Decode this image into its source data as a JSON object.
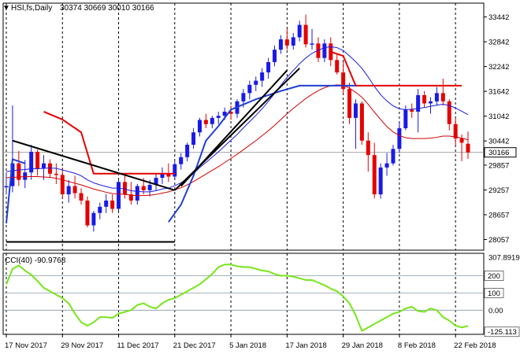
{
  "header": {
    "symbol_label": "HSI,fs,Daily",
    "quote_values": "30374 30669 30010 30166",
    "dropdown_glyph": "▼"
  },
  "subwindow": {
    "indicator_label": "CCI(40) -90.9768"
  },
  "colors": {
    "bull": "#1a1ae6",
    "bear": "#e60000",
    "ema_fast": "#1a1ae6",
    "ema_slow": "#d40000",
    "stop_blue": "#1f3fd6",
    "stop_red": "#e60000",
    "cci": "#77e61a",
    "trend": "#000000",
    "price_tag": "#ffffff"
  },
  "chart_data": [
    {
      "type": "candlestick",
      "ylim": [
        27800,
        33700
      ],
      "yticks": [
        "33442",
        "32842",
        "32242",
        "31642",
        "31042",
        "30442",
        "30166",
        "29857",
        "29257",
        "28657",
        "28057"
      ],
      "ytick_values": [
        33442,
        32842,
        32242,
        31642,
        31042,
        30442,
        30166,
        29857,
        29257,
        28657,
        28057
      ],
      "last_price": 30166,
      "xtick_labels": [
        "17 Nov 2017",
        "29 Nov 2017",
        "11 Dec 2017",
        "21 Dec 2017",
        "5 Jan 2018",
        "17 Jan 2018",
        "29 Jan 2018",
        "8 Feb 2018",
        "22 Feb 2018"
      ],
      "xtick_index": [
        0,
        9,
        18,
        27,
        36,
        45,
        54,
        63,
        72
      ],
      "grid": true,
      "candles": [
        [
          29320,
          29680,
          29150,
          29350
        ],
        [
          29350,
          31300,
          29200,
          29900
        ],
        [
          29900,
          30200,
          29350,
          29500
        ],
        [
          29500,
          29980,
          29300,
          29680
        ],
        [
          29680,
          30350,
          29500,
          30180
        ],
        [
          30180,
          30230,
          29600,
          29780
        ],
        [
          29780,
          30100,
          29500,
          29900
        ],
        [
          29900,
          30000,
          29550,
          29650
        ],
        [
          29650,
          29900,
          29400,
          29620
        ],
        [
          29620,
          29800,
          29050,
          29150
        ],
        [
          29150,
          29500,
          28950,
          29350
        ],
        [
          29350,
          29600,
          29050,
          29180
        ],
        [
          29180,
          29300,
          28900,
          29000
        ],
        [
          29000,
          29100,
          28350,
          28400
        ],
        [
          28400,
          28750,
          28250,
          28700
        ],
        [
          28700,
          28950,
          28550,
          28850
        ],
        [
          28850,
          29150,
          28700,
          29000
        ],
        [
          29000,
          29150,
          28700,
          28800
        ],
        [
          28800,
          29500,
          28750,
          29450
        ],
        [
          29450,
          29600,
          29050,
          29150
        ],
        [
          29150,
          29450,
          28900,
          29000
        ],
        [
          29000,
          29400,
          28900,
          29350
        ],
        [
          29350,
          29550,
          29150,
          29250
        ],
        [
          29250,
          29500,
          29100,
          29380
        ],
        [
          29380,
          29650,
          29250,
          29550
        ],
        [
          29550,
          29800,
          29400,
          29650
        ],
        [
          29650,
          29900,
          29450,
          29580
        ],
        [
          29580,
          29950,
          29500,
          29880
        ],
        [
          29880,
          30150,
          29750,
          30050
        ],
        [
          30050,
          30400,
          29950,
          30350
        ],
        [
          30350,
          30750,
          30250,
          30650
        ],
        [
          30650,
          31000,
          30550,
          30950
        ],
        [
          30950,
          31100,
          30750,
          30850
        ],
        [
          30850,
          31050,
          30750,
          31000
        ],
        [
          31000,
          31150,
          30850,
          31050
        ],
        [
          31050,
          31250,
          30950,
          31150
        ],
        [
          31150,
          31300,
          30950,
          31100
        ],
        [
          31100,
          31450,
          31000,
          31400
        ],
        [
          31400,
          31700,
          31250,
          31600
        ],
        [
          31600,
          31900,
          31450,
          31800
        ],
        [
          31800,
          32000,
          31650,
          31900
        ],
        [
          31900,
          32200,
          31750,
          32100
        ],
        [
          32100,
          32450,
          31950,
          32350
        ],
        [
          32350,
          32750,
          32250,
          32650
        ],
        [
          32650,
          33000,
          32550,
          32900
        ],
        [
          32900,
          33150,
          32650,
          32750
        ],
        [
          32750,
          33050,
          32650,
          32950
        ],
        [
          32950,
          33350,
          32850,
          33250
        ],
        [
          33250,
          33500,
          32700,
          32780
        ],
        [
          32780,
          33150,
          32650,
          32800
        ],
        [
          32800,
          32950,
          32350,
          32450
        ],
        [
          32450,
          32900,
          32350,
          32800
        ],
        [
          32800,
          32950,
          32250,
          32400
        ],
        [
          32400,
          32550,
          32050,
          32100
        ],
        [
          32100,
          32350,
          31600,
          31700
        ],
        [
          31700,
          31850,
          30850,
          31000
        ],
        [
          31000,
          31450,
          30250,
          31350
        ],
        [
          31350,
          31400,
          30350,
          30450
        ],
        [
          30450,
          30650,
          29700,
          30100
        ],
        [
          30100,
          30400,
          29050,
          29150
        ],
        [
          29150,
          29900,
          29050,
          29800
        ],
        [
          29800,
          30150,
          29600,
          29900
        ],
        [
          29900,
          30350,
          29850,
          30250
        ],
        [
          30250,
          30900,
          30150,
          30750
        ],
        [
          30750,
          31300,
          30700,
          31200
        ],
        [
          31200,
          31350,
          31000,
          31150
        ],
        [
          31150,
          31700,
          30650,
          31550
        ],
        [
          31550,
          31650,
          31250,
          31350
        ],
        [
          31350,
          31500,
          31100,
          31400
        ],
        [
          31400,
          31750,
          31300,
          31600
        ],
        [
          31600,
          31950,
          31300,
          31400
        ],
        [
          31400,
          31450,
          30700,
          30850
        ],
        [
          30850,
          31000,
          30350,
          30500
        ],
        [
          30500,
          30600,
          29950,
          30400
        ],
        [
          30374,
          30669,
          30010,
          30166
        ]
      ],
      "lines": {
        "ema_fast": [
          29700,
          29720,
          29740,
          29750,
          29770,
          29770,
          29780,
          29790,
          29780,
          29740,
          29700,
          29660,
          29600,
          29500,
          29430,
          29380,
          29340,
          29300,
          29300,
          29280,
          29240,
          29220,
          29210,
          29210,
          29240,
          29280,
          29300,
          29360,
          29430,
          29530,
          29650,
          29800,
          29920,
          30050,
          30180,
          30320,
          30460,
          30600,
          30760,
          30910,
          31060,
          31220,
          31400,
          31590,
          31790,
          31980,
          32150,
          32310,
          32450,
          32560,
          32640,
          32700,
          32720,
          32700,
          32630,
          32500,
          32360,
          32200,
          31990,
          31760,
          31560,
          31410,
          31290,
          31220,
          31200,
          31210,
          31230,
          31250,
          31280,
          31310,
          31330,
          31300,
          31240,
          31160,
          31080
        ],
        "ema_slow": [
          29550,
          29560,
          29570,
          29580,
          29580,
          29580,
          29570,
          29560,
          29540,
          29500,
          29460,
          29420,
          29380,
          29330,
          29280,
          29240,
          29200,
          29170,
          29160,
          29150,
          29130,
          29120,
          29120,
          29130,
          29150,
          29180,
          29210,
          29260,
          29310,
          29380,
          29460,
          29550,
          29640,
          29730,
          29820,
          29920,
          30020,
          30120,
          30230,
          30340,
          30450,
          30570,
          30690,
          30820,
          30960,
          31100,
          31230,
          31350,
          31470,
          31570,
          31660,
          31730,
          31780,
          31800,
          31790,
          31720,
          31620,
          31500,
          31330,
          31140,
          30960,
          30790,
          30660,
          30570,
          30520,
          30500,
          30500,
          30500,
          30510,
          30530,
          30560,
          30560,
          30540,
          30510,
          30470
        ],
        "stop_red_segments": [
          [
            [
              6,
              31150
            ],
            [
              9,
              30960
            ],
            [
              12,
              30650
            ],
            [
              14,
              29650
            ],
            [
              27,
              29650
            ]
          ],
          [
            [
              52,
              32600
            ],
            [
              54,
              32500
            ],
            [
              56,
              31780
            ],
            [
              73,
              31780
            ]
          ]
        ],
        "stop_blue_segments": [
          [
            [
              0,
              28450
            ],
            [
              1,
              30000
            ],
            [
              2,
              29950
            ],
            [
              3,
              29900
            ]
          ],
          [
            [
              26,
              28480
            ],
            [
              28,
              28900
            ],
            [
              30,
              29600
            ],
            [
              32,
              30450
            ],
            [
              34,
              30800
            ],
            [
              36,
              31200
            ],
            [
              40,
              31450
            ],
            [
              44,
              31650
            ],
            [
              47,
              31780
            ],
            [
              56,
              31780
            ]
          ]
        ],
        "trendlines": [
          [
            [
              1,
              30450
            ],
            [
              27,
              29250
            ]
          ],
          [
            [
              27,
              29250
            ],
            [
              47,
              32200
            ]
          ],
          [
            [
              28,
              29350
            ],
            [
              45,
              32150
            ]
          ],
          [
            [
              0,
              28000
            ],
            [
              27,
              28000
            ]
          ]
        ]
      }
    },
    {
      "type": "line",
      "ylim": [
        -140,
        330
      ],
      "yticks": [
        "307.8919",
        "200",
        "100",
        "0.00",
        "-125.113"
      ],
      "ytick_values": [
        307.8919,
        200,
        100,
        0,
        -125.113
      ],
      "levels": [
        200,
        100,
        0
      ],
      "cci": [
        150,
        240,
        260,
        230,
        205,
        170,
        130,
        110,
        90,
        70,
        40,
        -20,
        -70,
        -90,
        -70,
        -40,
        -40,
        -45,
        -20,
        -10,
        0,
        30,
        40,
        20,
        10,
        40,
        60,
        70,
        90,
        110,
        130,
        150,
        180,
        210,
        250,
        265,
        265,
        255,
        250,
        250,
        240,
        230,
        225,
        210,
        200,
        200,
        195,
        185,
        175,
        175,
        160,
        145,
        125,
        110,
        80,
        40,
        -30,
        -120,
        -100,
        -80,
        -60,
        -40,
        -20,
        -10,
        10,
        20,
        -5,
        -10,
        10,
        0,
        -40,
        -60,
        -90,
        -100,
        -91
      ]
    }
  ]
}
